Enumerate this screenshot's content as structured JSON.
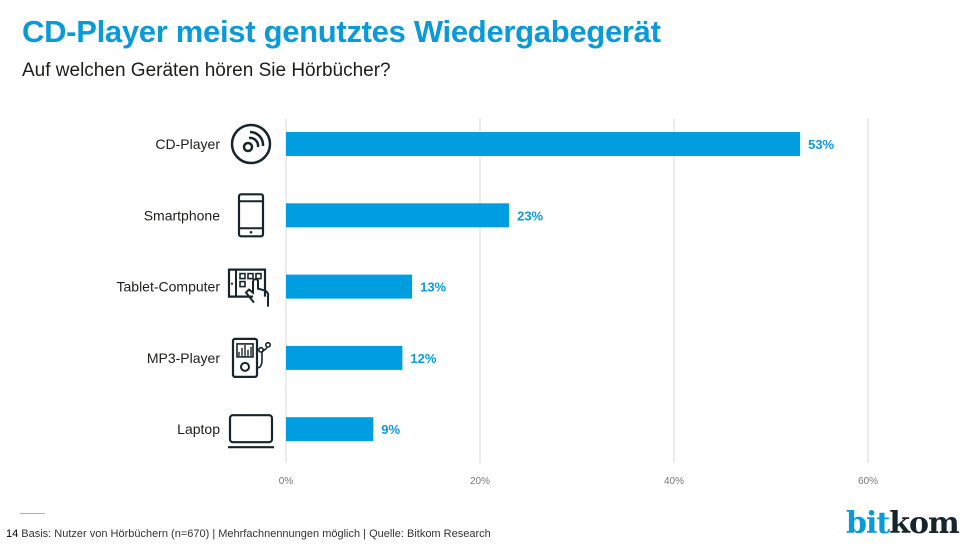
{
  "header": {
    "title": "CD-Player meist genutztes Wiedergabegerät",
    "subtitle": "Auf welchen Geräten hören Sie Hörbücher?"
  },
  "chart_data": {
    "type": "bar",
    "orientation": "horizontal",
    "title": "CD-Player meist genutztes Wiedergabegerät",
    "subtitle": "Auf welchen Geräten hören Sie Hörbücher?",
    "categories": [
      "CD-Player",
      "Smartphone",
      "Tablet-Computer",
      "MP3-Player",
      "Laptop"
    ],
    "icons": [
      "cd-icon",
      "smartphone-icon",
      "tablet-touch-icon",
      "mp3-player-icon",
      "laptop-icon"
    ],
    "values": [
      53,
      23,
      13,
      12,
      9
    ],
    "value_labels": [
      "53%",
      "23%",
      "13%",
      "12%",
      "9%"
    ],
    "xlabel": "",
    "ylabel": "",
    "xlim": [
      0,
      60
    ],
    "x_ticks": [
      0,
      20,
      40,
      60
    ],
    "x_tick_labels": [
      "0%",
      "20%",
      "40%",
      "60%"
    ],
    "grid": true,
    "bar_color": "#009ee0",
    "label_color": "#0a9ad9"
  },
  "footer": {
    "page_number": "14",
    "note": "Basis: Nutzer von Hörbüchern (n=670) | Mehrfachnennungen möglich | Quelle: Bitkom Research"
  },
  "logo": {
    "part1": "bit",
    "part2": "kom"
  }
}
